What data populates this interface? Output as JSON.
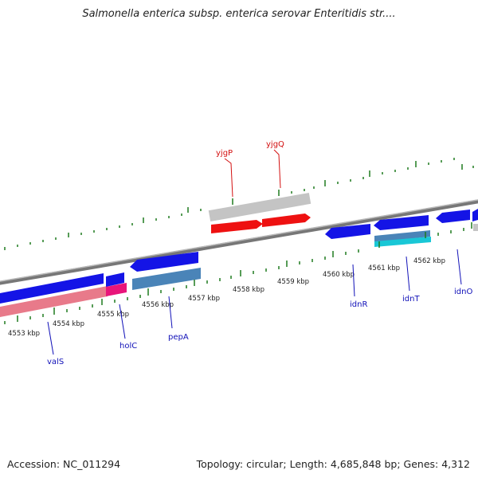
{
  "title": "Salmonella enterica subsp. enterica serovar Enteritidis str....",
  "footer": {
    "accession": "Accession: NC_011294",
    "summary": "Topology: circular; Length: 4,685,848 bp; Genes: 4,312"
  },
  "colors": {
    "background": "#ffffff",
    "backbone": "#888888",
    "tick": "#1f7a1f",
    "gene_blue": "#1414e6",
    "gene_red": "#ee1111",
    "gene_gray": "#c4c4c4",
    "gene_steel": "#4a84b8",
    "gene_cyan": "#19c7d6",
    "gene_pink": "#e85a8a",
    "gene_magenta": "#e8157a",
    "label_red": "#d31010",
    "label_blue": "#1010b8"
  },
  "scale_labels": [
    "4553 kbp",
    "4554 kbp",
    "4555 kbp",
    "4556 kbp",
    "4557 kbp",
    "4558 kbp",
    "4559 kbp",
    "4560 kbp",
    "4561 kbp",
    "4562 kbp"
  ],
  "gene_labels": [
    "yjgP",
    "yjgQ",
    "valS",
    "holC",
    "pepA",
    "idnR",
    "idnT",
    "idnO"
  ]
}
